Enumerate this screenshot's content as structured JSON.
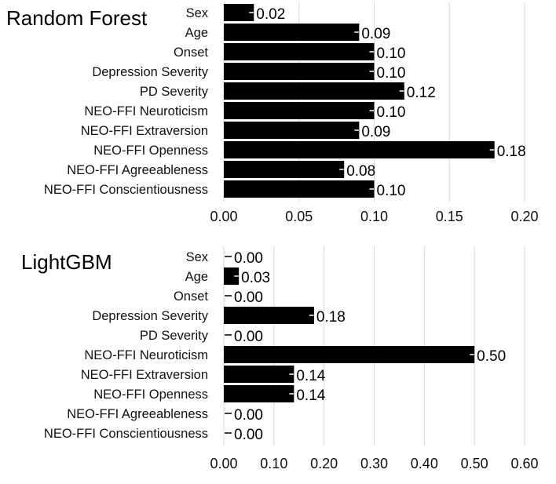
{
  "chart_data": [
    {
      "type": "bar",
      "orientation": "horizontal",
      "title": "Random Forest",
      "categories": [
        "Sex",
        "Age",
        "Onset",
        "Depression Severity",
        "PD Severity",
        "NEO-FFI Neuroticism",
        "NEO-FFI Extraversion",
        "NEO-FFI Openness",
        "NEO-FFI Agreeableness",
        "NEO-FFI Conscientiousness"
      ],
      "values": [
        0.02,
        0.09,
        0.1,
        0.1,
        0.12,
        0.1,
        0.09,
        0.18,
        0.08,
        0.1
      ],
      "value_labels": [
        "0.02",
        "0.09",
        "0.10",
        "0.10",
        "0.12",
        "0.10",
        "0.09",
        "0.18",
        "0.08",
        "0.10"
      ],
      "xlim": [
        0,
        0.2
      ],
      "xticks": [
        0,
        0.05,
        0.1,
        0.15,
        0.2
      ],
      "xtick_labels": [
        "0.00",
        "0.05",
        "0.10",
        "0.15",
        "0.20"
      ],
      "grid": true,
      "bar_color": "#000000"
    },
    {
      "type": "bar",
      "orientation": "horizontal",
      "title": "LightGBM",
      "categories": [
        "Sex",
        "Age",
        "Onset",
        "Depression Severity",
        "PD Severity",
        "NEO-FFI Neuroticism",
        "NEO-FFI Extraversion",
        "NEO-FFI Openness",
        "NEO-FFI Agreeableness",
        "NEO-FFI Conscientiousness"
      ],
      "values": [
        0.0,
        0.03,
        0.0,
        0.18,
        0.0,
        0.5,
        0.14,
        0.14,
        0.0,
        0.0
      ],
      "value_labels": [
        "0.00",
        "0.03",
        "0.00",
        "0.18",
        "0.00",
        "0.50",
        "0.14",
        "0.14",
        "0.00",
        "0.00"
      ],
      "xlim": [
        0,
        0.6
      ],
      "xticks": [
        0,
        0.1,
        0.2,
        0.3,
        0.4,
        0.5,
        0.6
      ],
      "xtick_labels": [
        "0.00",
        "0.10",
        "0.20",
        "0.30",
        "0.40",
        "0.50",
        "0.60"
      ],
      "grid": true,
      "bar_color": "#000000"
    }
  ]
}
